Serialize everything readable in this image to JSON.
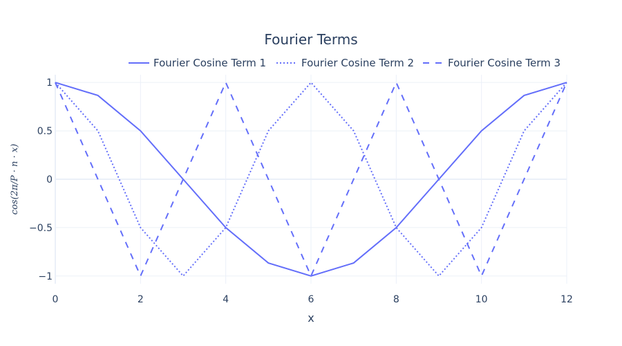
{
  "chart_data": {
    "type": "line",
    "title": "Fourier Terms",
    "xlabel": "x",
    "ylabel": "cos(2π/P · n · x)",
    "xlim": [
      0,
      12
    ],
    "ylim": [
      -1.08,
      1.08
    ],
    "x_ticks": [
      0,
      2,
      4,
      6,
      8,
      10,
      12
    ],
    "y_ticks": [
      1,
      0.5,
      0,
      -0.5,
      -1
    ],
    "y_tick_labels": [
      "1",
      "0.5",
      "0",
      "−0.5",
      "−1"
    ],
    "grid": true,
    "legend_position": "top-right",
    "line_color": "#636efa",
    "x": [
      0,
      1,
      2,
      3,
      4,
      5,
      6,
      7,
      8,
      9,
      10,
      11,
      12
    ],
    "series": [
      {
        "name": "Fourier Cosine Term 1",
        "dash": "solid",
        "values": [
          1,
          0.866,
          0.5,
          0,
          -0.5,
          -0.866,
          -1,
          -0.866,
          -0.5,
          0,
          0.5,
          0.866,
          1
        ]
      },
      {
        "name": "Fourier Cosine Term 2",
        "dash": "dotted",
        "values": [
          1,
          0.5,
          -0.5,
          -1,
          -0.5,
          0.5,
          1,
          0.5,
          -0.5,
          -1,
          -0.5,
          0.5,
          1
        ]
      },
      {
        "name": "Fourier Cosine Term 3",
        "dash": "dashed",
        "values": [
          1,
          0,
          -1,
          0,
          1,
          0,
          -1,
          0,
          1,
          0,
          -1,
          0,
          1
        ]
      }
    ]
  }
}
